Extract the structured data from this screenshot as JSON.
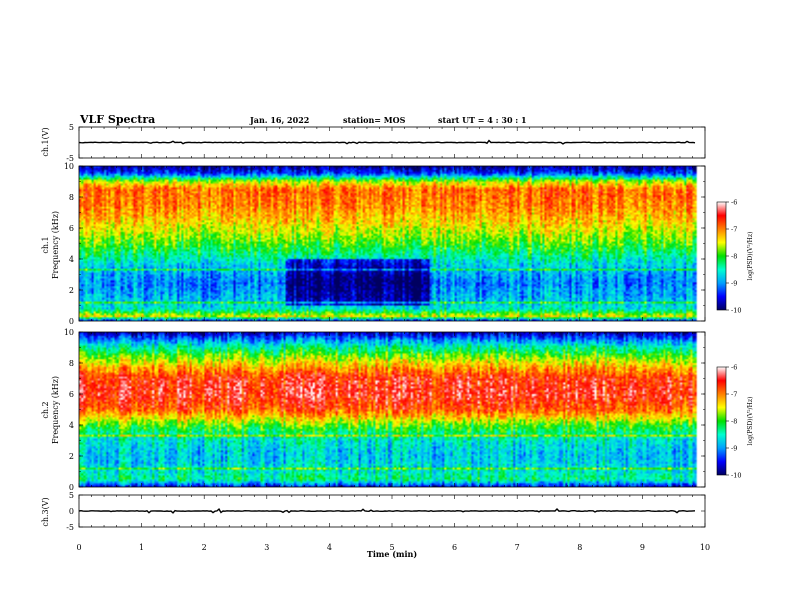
{
  "header": {
    "title": "VLF Spectra",
    "date": "Jan. 16, 2022",
    "station": "station= MOS",
    "start": "start  UT =   4 : 30 : 1"
  },
  "chart_data": {
    "type": "heatmap",
    "panels": [
      {
        "name": "ch.1 waveform",
        "ylabel": "ch.1(V)",
        "ylim": [
          -5,
          5
        ],
        "yticks": [
          "5",
          "-5"
        ],
        "kind": "line",
        "trace_level": 0
      },
      {
        "name": "ch.1 spectrogram",
        "ylabel": "ch.1\nFrequency (kHz)",
        "ylabel_lines": [
          "ch.1",
          "Frequency (kHz)"
        ],
        "ylim": [
          0,
          10
        ],
        "yticks": [
          "0",
          "2",
          "4",
          "6",
          "8",
          "10"
        ],
        "kind": "heatmap",
        "profile": [
          {
            "f": 0.0,
            "v": -9.6
          },
          {
            "f": 0.3,
            "v": -7.5
          },
          {
            "f": 0.8,
            "v": -8.6
          },
          {
            "f": 1.5,
            "v": -8.9
          },
          {
            "f": 2.5,
            "v": -9.1
          },
          {
            "f": 3.5,
            "v": -8.8
          },
          {
            "f": 4.5,
            "v": -8.2
          },
          {
            "f": 5.5,
            "v": -7.7
          },
          {
            "f": 6.5,
            "v": -7.3
          },
          {
            "f": 7.5,
            "v": -7.0
          },
          {
            "f": 8.5,
            "v": -6.9
          },
          {
            "f": 9.0,
            "v": -7.6
          },
          {
            "f": 9.5,
            "v": -9.3
          },
          {
            "f": 10.0,
            "v": -9.9
          }
        ],
        "quiet_interval_min": [
          3.3,
          5.6
        ]
      },
      {
        "name": "ch.2 spectrogram",
        "ylabel": "ch.2\nFrequency (kHz)",
        "ylabel_lines": [
          "ch.2",
          "Frequency (kHz)"
        ],
        "ylim": [
          0,
          10
        ],
        "yticks": [
          "0",
          "2",
          "4",
          "6",
          "8",
          "10"
        ],
        "kind": "heatmap",
        "profile": [
          {
            "f": 0.0,
            "v": -9.6
          },
          {
            "f": 0.5,
            "v": -8.3
          },
          {
            "f": 1.0,
            "v": -8.6
          },
          {
            "f": 2.0,
            "v": -8.8
          },
          {
            "f": 3.0,
            "v": -8.6
          },
          {
            "f": 4.0,
            "v": -7.9
          },
          {
            "f": 5.0,
            "v": -6.8
          },
          {
            "f": 6.0,
            "v": -6.5
          },
          {
            "f": 7.0,
            "v": -6.6
          },
          {
            "f": 8.0,
            "v": -7.4
          },
          {
            "f": 9.0,
            "v": -8.4
          },
          {
            "f": 9.6,
            "v": -9.2
          },
          {
            "f": 10.0,
            "v": -9.8
          }
        ],
        "quiet_interval_min": null
      },
      {
        "name": "ch.3 waveform",
        "ylabel": "ch.3(V)",
        "ylim": [
          -5,
          5
        ],
        "yticks": [
          "5",
          "0",
          "-5"
        ],
        "kind": "line",
        "trace_level": 0
      }
    ],
    "x": {
      "label": "Time (min)",
      "range": [
        0,
        10
      ],
      "data_end": 9.85,
      "ticks": [
        "0",
        "1",
        "2",
        "3",
        "4",
        "5",
        "6",
        "7",
        "8",
        "9",
        "10"
      ]
    },
    "colorbar": {
      "label": "log(PSD)(V²/Hz)",
      "range": [
        -10,
        -6
      ],
      "ticks": [
        "-6",
        "-7",
        "-8",
        "-9",
        "-10"
      ],
      "colormap": [
        "#000060",
        "#0000ff",
        "#00a0ff",
        "#00ffd0",
        "#00e000",
        "#ffff00",
        "#ff8000",
        "#ff0000",
        "#ffffff"
      ]
    }
  }
}
